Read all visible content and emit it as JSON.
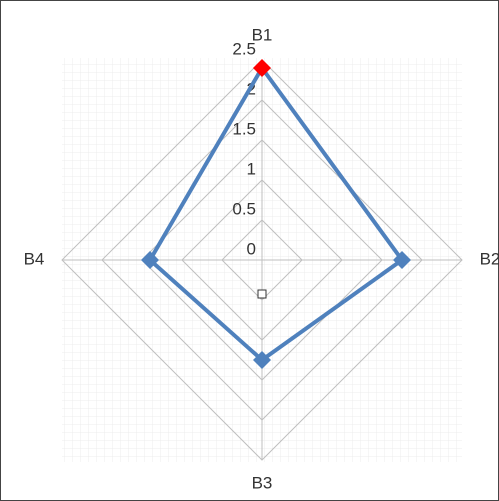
{
  "chart_data": {
    "type": "radar",
    "categories": [
      "B1",
      "B2",
      "B3",
      "B4"
    ],
    "series": [
      {
        "color": "#4f81bd",
        "values": [
          2.4,
          1.75,
          1.25,
          1.4
        ],
        "point_colors": [
          "#ff0000",
          "#4f81bd",
          "#4f81bd",
          "#4f81bd"
        ]
      }
    ],
    "ylim": [
      0,
      2.5
    ],
    "yticks": [
      0,
      0.5,
      1,
      1.5,
      2,
      2.5
    ],
    "grid": true
  }
}
